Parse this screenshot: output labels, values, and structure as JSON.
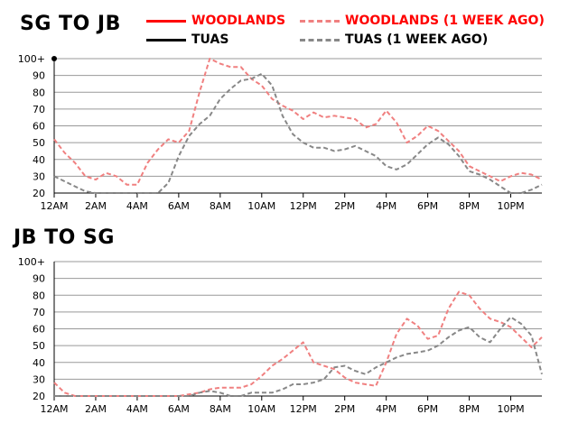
{
  "titles": {
    "sg_to_jb": "SG TO JB",
    "jb_to_sg": "JB TO SG"
  },
  "legend": {
    "woodlands": "WOODLANDS",
    "tuas": "TUAS",
    "woodlands_prev": "WOODLANDS (1 WEEK AGO)",
    "tuas_prev": "TUAS (1 WEEK AGO)"
  },
  "colors": {
    "woodlands": "#ff0000",
    "tuas": "#000000",
    "woodlands_prev": "#f08080",
    "tuas_prev": "#888888",
    "grid": "#999999"
  },
  "chart_data": [
    {
      "type": "line",
      "title": "SG TO JB",
      "xlabel": "",
      "ylabel": "",
      "x_unit": "hour of day",
      "xlim": [
        0,
        23.5
      ],
      "ylim": [
        20,
        100
      ],
      "grid": true,
      "x_tick_values": [
        0,
        2,
        4,
        6,
        8,
        10,
        12,
        14,
        16,
        18,
        20,
        22
      ],
      "x_tick_labels": [
        "12AM",
        "2AM",
        "4AM",
        "6AM",
        "8AM",
        "10AM",
        "12PM",
        "2PM",
        "4PM",
        "6PM",
        "8PM",
        "10PM"
      ],
      "y_tick_values": [
        20,
        30,
        40,
        50,
        60,
        70,
        80,
        90,
        100
      ],
      "y_tick_labels": [
        "20",
        "30",
        "40",
        "50",
        "60",
        "70",
        "80",
        "90",
        "100+"
      ],
      "marker": {
        "x": 0,
        "y": 100
      },
      "series": [
        {
          "name": "WOODLANDS (1 WEEK AGO)",
          "style": "dashed",
          "points": [
            [
              0,
              52
            ],
            [
              0.5,
              44
            ],
            [
              1,
              38
            ],
            [
              1.5,
              30
            ],
            [
              2,
              28
            ],
            [
              2.5,
              32
            ],
            [
              3,
              30
            ],
            [
              3.5,
              25
            ],
            [
              4,
              25
            ],
            [
              4.5,
              38
            ],
            [
              5,
              46
            ],
            [
              5.5,
              52
            ],
            [
              6,
              50
            ],
            [
              6.5,
              57
            ],
            [
              7,
              80
            ],
            [
              7.5,
              100
            ],
            [
              8,
              97
            ],
            [
              8.5,
              95
            ],
            [
              9,
              95
            ],
            [
              9.5,
              88
            ],
            [
              10,
              84
            ],
            [
              10.5,
              76
            ],
            [
              11,
              72
            ],
            [
              11.5,
              69
            ],
            [
              12,
              64
            ],
            [
              12.5,
              68
            ],
            [
              13,
              65
            ],
            [
              13.5,
              66
            ],
            [
              14,
              65
            ],
            [
              14.5,
              64
            ],
            [
              15,
              59
            ],
            [
              15.5,
              61
            ],
            [
              16,
              69
            ],
            [
              16.5,
              62
            ],
            [
              17,
              50
            ],
            [
              17.5,
              54
            ],
            [
              18,
              60
            ],
            [
              18.5,
              57
            ],
            [
              19,
              51
            ],
            [
              19.5,
              45
            ],
            [
              20,
              36
            ],
            [
              20.5,
              33
            ],
            [
              21,
              30
            ],
            [
              21.5,
              27
            ],
            [
              22,
              30
            ],
            [
              22.5,
              32
            ],
            [
              23,
              31
            ],
            [
              23.5,
              28
            ]
          ]
        },
        {
          "name": "TUAS (1 WEEK AGO)",
          "style": "dashed",
          "points": [
            [
              0,
              30
            ],
            [
              0.5,
              27
            ],
            [
              1,
              24
            ],
            [
              1.5,
              21
            ],
            [
              2,
              20
            ],
            [
              2.5,
              20
            ],
            [
              3,
              20
            ],
            [
              3.5,
              20
            ],
            [
              4,
              20
            ],
            [
              4.5,
              20
            ],
            [
              5,
              20
            ],
            [
              5.5,
              26
            ],
            [
              6,
              42
            ],
            [
              6.5,
              54
            ],
            [
              7,
              61
            ],
            [
              7.5,
              66
            ],
            [
              8,
              76
            ],
            [
              8.5,
              82
            ],
            [
              9,
              87
            ],
            [
              9.5,
              88
            ],
            [
              10,
              91
            ],
            [
              10.5,
              84
            ],
            [
              11,
              66
            ],
            [
              11.5,
              55
            ],
            [
              12,
              50
            ],
            [
              12.5,
              47
            ],
            [
              13,
              47
            ],
            [
              13.5,
              45
            ],
            [
              14,
              46
            ],
            [
              14.5,
              48
            ],
            [
              15,
              45
            ],
            [
              15.5,
              42
            ],
            [
              16,
              36
            ],
            [
              16.5,
              34
            ],
            [
              17,
              37
            ],
            [
              17.5,
              43
            ],
            [
              18,
              49
            ],
            [
              18.5,
              53
            ],
            [
              19,
              49
            ],
            [
              19.5,
              42
            ],
            [
              20,
              33
            ],
            [
              20.5,
              31
            ],
            [
              21,
              28
            ],
            [
              21.5,
              24
            ],
            [
              22,
              20
            ],
            [
              22.5,
              20
            ],
            [
              23,
              22
            ],
            [
              23.5,
              25
            ]
          ]
        }
      ]
    },
    {
      "type": "line",
      "title": "JB TO SG",
      "xlabel": "",
      "ylabel": "",
      "x_unit": "hour of day",
      "xlim": [
        0,
        23.5
      ],
      "ylim": [
        20,
        100
      ],
      "grid": true,
      "x_tick_values": [
        0,
        2,
        4,
        6,
        8,
        10,
        12,
        14,
        16,
        18,
        20,
        22
      ],
      "x_tick_labels": [
        "12AM",
        "2AM",
        "4AM",
        "6AM",
        "8AM",
        "10AM",
        "12PM",
        "2PM",
        "4PM",
        "6PM",
        "8PM",
        "10PM"
      ],
      "y_tick_values": [
        20,
        30,
        40,
        50,
        60,
        70,
        80,
        90,
        100
      ],
      "y_tick_labels": [
        "20",
        "30",
        "40",
        "50",
        "60",
        "70",
        "80",
        "90",
        "100+"
      ],
      "series": [
        {
          "name": "WOODLANDS (1 WEEK AGO)",
          "style": "dashed",
          "points": [
            [
              0,
              28
            ],
            [
              0.5,
              22
            ],
            [
              1,
              20
            ],
            [
              1.5,
              20
            ],
            [
              2,
              20
            ],
            [
              2.5,
              20
            ],
            [
              3,
              20
            ],
            [
              3.5,
              20
            ],
            [
              4,
              20
            ],
            [
              4.5,
              20
            ],
            [
              5,
              20
            ],
            [
              5.5,
              20
            ],
            [
              6,
              20
            ],
            [
              6.5,
              21
            ],
            [
              7,
              22
            ],
            [
              7.5,
              24
            ],
            [
              8,
              25
            ],
            [
              8.5,
              25
            ],
            [
              9,
              25
            ],
            [
              9.5,
              27
            ],
            [
              10,
              32
            ],
            [
              10.5,
              38
            ],
            [
              11,
              42
            ],
            [
              11.5,
              47
            ],
            [
              12,
              52
            ],
            [
              12.5,
              40
            ],
            [
              13,
              38
            ],
            [
              13.5,
              36
            ],
            [
              14,
              31
            ],
            [
              14.5,
              28
            ],
            [
              15,
              27
            ],
            [
              15.5,
              26
            ],
            [
              16,
              40
            ],
            [
              16.5,
              57
            ],
            [
              17,
              66
            ],
            [
              17.5,
              62
            ],
            [
              18,
              54
            ],
            [
              18.5,
              56
            ],
            [
              19,
              72
            ],
            [
              19.5,
              82
            ],
            [
              20,
              80
            ],
            [
              20.5,
              72
            ],
            [
              21,
              66
            ],
            [
              21.5,
              64
            ],
            [
              22,
              61
            ],
            [
              22.5,
              55
            ],
            [
              23,
              49
            ],
            [
              23.5,
              55
            ]
          ]
        },
        {
          "name": "TUAS (1 WEEK AGO)",
          "style": "dashed",
          "points": [
            [
              0,
              20
            ],
            [
              0.5,
              20
            ],
            [
              1,
              20
            ],
            [
              1.5,
              20
            ],
            [
              2,
              20
            ],
            [
              2.5,
              20
            ],
            [
              3,
              20
            ],
            [
              3.5,
              20
            ],
            [
              4,
              20
            ],
            [
              4.5,
              20
            ],
            [
              5,
              20
            ],
            [
              5.5,
              20
            ],
            [
              6,
              20
            ],
            [
              6.5,
              20
            ],
            [
              7,
              22
            ],
            [
              7.5,
              23
            ],
            [
              8,
              22
            ],
            [
              8.5,
              20
            ],
            [
              9,
              20
            ],
            [
              9.5,
              22
            ],
            [
              10,
              22
            ],
            [
              10.5,
              22
            ],
            [
              11,
              24
            ],
            [
              11.5,
              27
            ],
            [
              12,
              27
            ],
            [
              12.5,
              28
            ],
            [
              13,
              30
            ],
            [
              13.5,
              37
            ],
            [
              14,
              38
            ],
            [
              14.5,
              35
            ],
            [
              15,
              33
            ],
            [
              15.5,
              37
            ],
            [
              16,
              40
            ],
            [
              16.5,
              43
            ],
            [
              17,
              45
            ],
            [
              17.5,
              46
            ],
            [
              18,
              47
            ],
            [
              18.5,
              50
            ],
            [
              19,
              55
            ],
            [
              19.5,
              59
            ],
            [
              20,
              61
            ],
            [
              20.5,
              55
            ],
            [
              21,
              52
            ],
            [
              21.5,
              60
            ],
            [
              22,
              67
            ],
            [
              22.5,
              63
            ],
            [
              23,
              56
            ],
            [
              23.5,
              33
            ]
          ]
        }
      ]
    }
  ]
}
